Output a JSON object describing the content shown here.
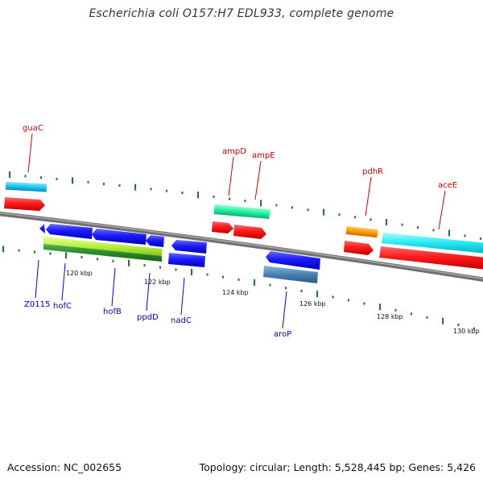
{
  "title": "Escherichia coli O157:H7 EDL933, complete genome",
  "footer": {
    "accession": "Accession: NC_002655",
    "summary": "Topology: circular; Length: 5,528,445 bp; Genes: 5,426"
  },
  "scale_labels": [
    {
      "kbp": 120,
      "label": "120 kbp"
    },
    {
      "kbp": 122,
      "label": "122 kbp"
    },
    {
      "kbp": 124,
      "label": "124 kbp"
    },
    {
      "kbp": 126,
      "label": "126 kbp"
    },
    {
      "kbp": 128,
      "label": "128 kbp"
    },
    {
      "kbp": 130,
      "label": "130 kbp"
    }
  ],
  "genes_forward": [
    {
      "label": "guaC",
      "color": "#cc0000"
    },
    {
      "label": "ampD",
      "color": "#cc0000"
    },
    {
      "label": "ampE",
      "color": "#cc0000"
    },
    {
      "label": "pdhR",
      "color": "#cc0000"
    },
    {
      "label": "aceE",
      "color": "#cc0000"
    }
  ],
  "genes_reverse": [
    {
      "label": "Z0115",
      "color": "#0000cc"
    },
    {
      "label": "hofC",
      "color": "#0000cc"
    },
    {
      "label": "hofB",
      "color": "#0000cc"
    },
    {
      "label": "ppdD",
      "color": "#0000cc"
    },
    {
      "label": "nadC",
      "color": "#0000cc"
    },
    {
      "label": "aroP",
      "color": "#0000cc"
    }
  ],
  "colors": {
    "backbone": "#888888",
    "tick": "#1f7a1f",
    "cds": "#ff1a1a",
    "cds_reverse": "#1a1aff",
    "feature_cyan": "#19c8f0",
    "feature_aqua": "#22e8f0",
    "feature_teal": "#1ef0a0",
    "feature_orange": "#ff9900",
    "feature_lime": "#b8f040",
    "feature_green": "#2a8a2a",
    "feature_steel": "#4a7fb0"
  }
}
